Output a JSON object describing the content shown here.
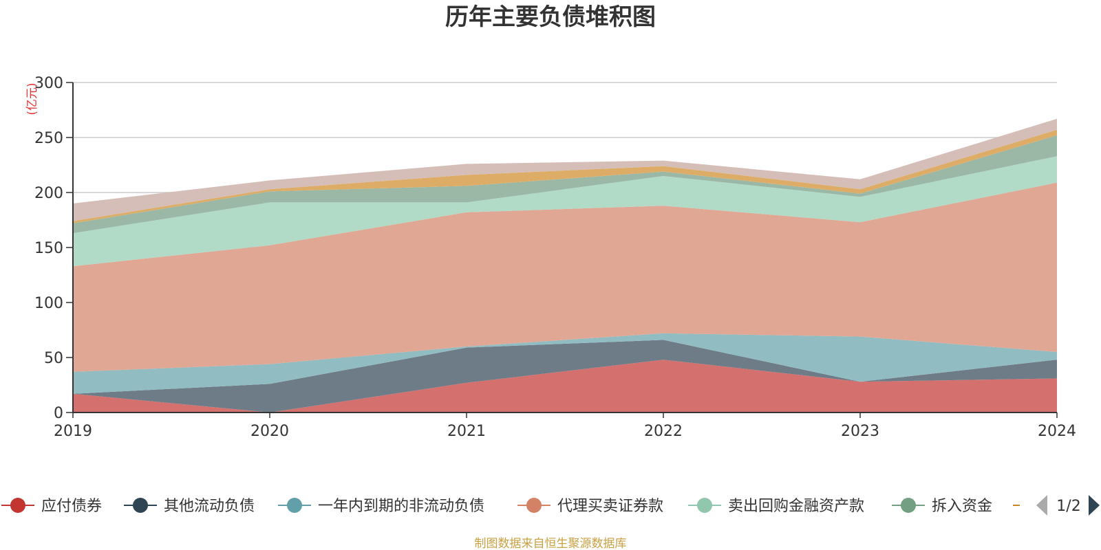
{
  "chart_data": {
    "type": "area",
    "stacked": true,
    "title": "历年主要负债堆积图",
    "unit": "(亿元)",
    "x": [
      "2019",
      "2020",
      "2021",
      "2022",
      "2023",
      "2024"
    ],
    "ylim": [
      0,
      300
    ],
    "yticks": [
      "0",
      "50",
      "100",
      "150",
      "200",
      "250",
      "300"
    ],
    "grid": true,
    "series": [
      {
        "name": "应付债券",
        "color": "#d4706e",
        "legend_color": "#c23531",
        "values": [
          17,
          0,
          27,
          48,
          28,
          31
        ]
      },
      {
        "name": "其他流动负债",
        "color": "#6e7c88",
        "legend_color": "#2f4554",
        "values": [
          0,
          26,
          32,
          18,
          0,
          17
        ]
      },
      {
        "name": "一年内到期的非流动负债",
        "color": "#91bcc2",
        "legend_color": "#61a0a8",
        "values": [
          20,
          18,
          1,
          6,
          41,
          7
        ]
      },
      {
        "name": "代理买卖证券款",
        "color": "#e0a794",
        "legend_color": "#d48265",
        "values": [
          96,
          108,
          122,
          116,
          104,
          154
        ]
      },
      {
        "name": "卖出回购金融资产款",
        "color": "#b1dac7",
        "legend_color": "#91c7ae",
        "values": [
          30,
          39,
          9,
          27,
          23,
          24
        ]
      },
      {
        "name": "拆入资金",
        "color": "#9bb7a5",
        "legend_color": "#749f83",
        "values": [
          9,
          10,
          15,
          4,
          3,
          19
        ]
      },
      {
        "name": "",
        "color": "#ddad67",
        "legend_color": "#ca8622",
        "values": [
          2,
          2,
          10,
          5,
          4,
          5
        ]
      },
      {
        "name": "",
        "color": "#d5beb7",
        "legend_color": "#bda29a",
        "values": [
          16,
          8,
          10,
          5,
          9,
          10
        ]
      }
    ],
    "legend_position": "bottom",
    "legend_page": "1/2",
    "source_note": "制图数据来自恒生聚源数据库"
  }
}
